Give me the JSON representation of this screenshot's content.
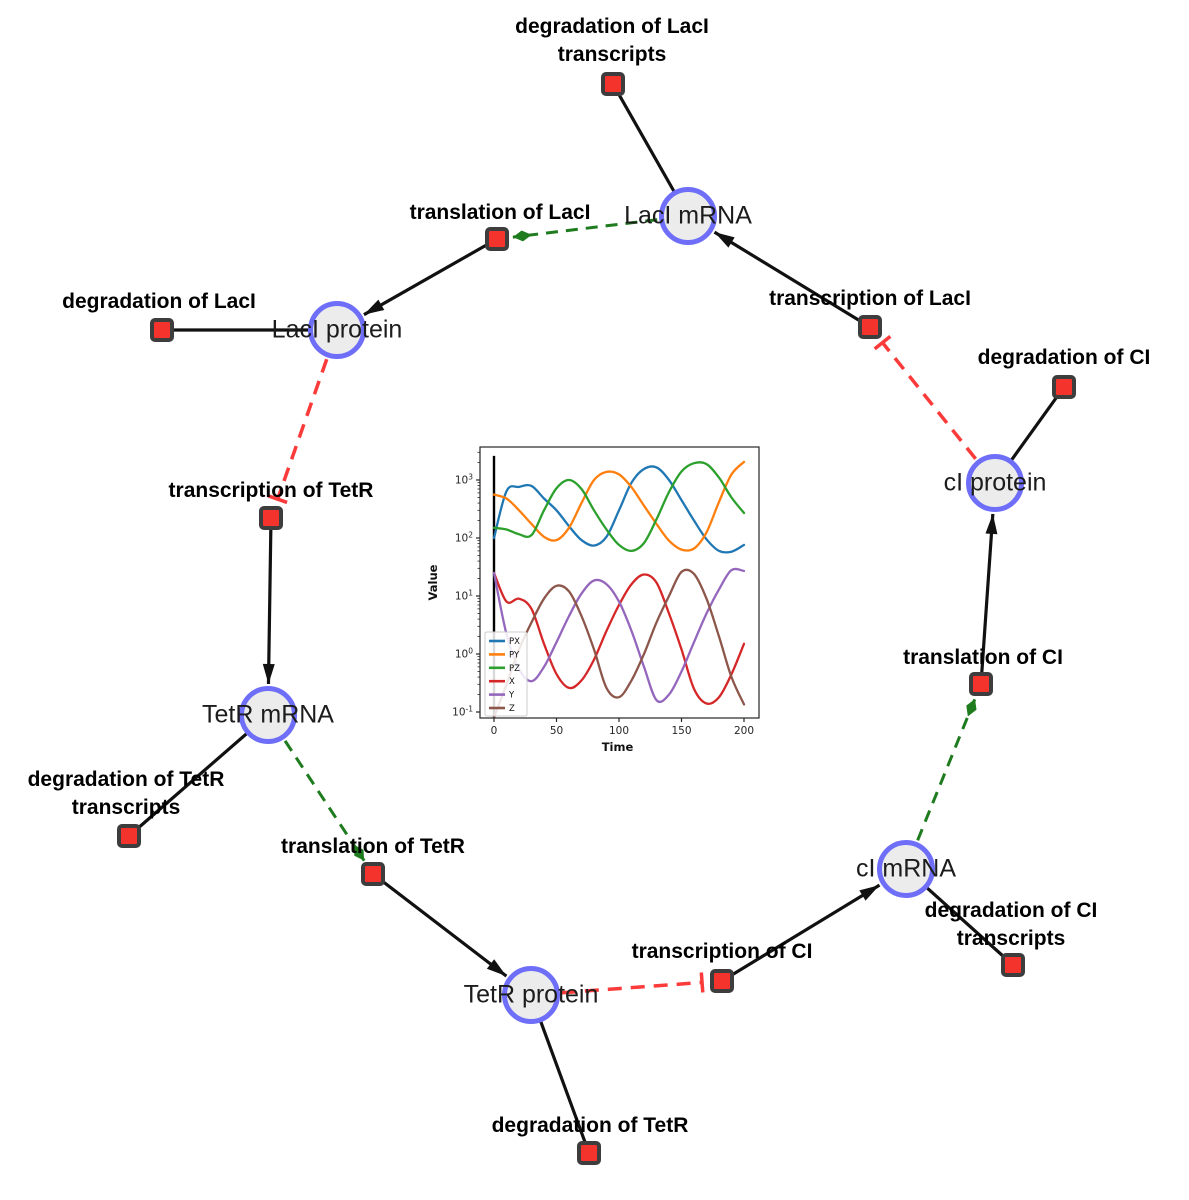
{
  "diagram": {
    "species": [
      {
        "id": "laci_mrna",
        "label": "LacI mRNA"
      },
      {
        "id": "laci_protein",
        "label": "LacI protein"
      },
      {
        "id": "ci_protein",
        "label": "cI protein"
      },
      {
        "id": "tetr_mrna",
        "label": "TetR mRNA"
      },
      {
        "id": "ci_mrna",
        "label": "cI mRNA"
      },
      {
        "id": "tetr_protein",
        "label": "TetR protein"
      }
    ],
    "reactions": [
      {
        "id": "deg_laci_tx",
        "label_lines": [
          "degradation of LacI",
          "transcripts"
        ]
      },
      {
        "id": "transl_laci",
        "label_lines": [
          "translation of LacI"
        ]
      },
      {
        "id": "deg_laci",
        "label_lines": [
          "degradation of LacI"
        ]
      },
      {
        "id": "txn_laci",
        "label_lines": [
          "transcription of LacI"
        ]
      },
      {
        "id": "deg_ci",
        "label_lines": [
          "degradation of CI"
        ]
      },
      {
        "id": "txn_tetr",
        "label_lines": [
          "transcription of TetR"
        ]
      },
      {
        "id": "transl_ci",
        "label_lines": [
          "translation of CI"
        ]
      },
      {
        "id": "deg_tetr_tx",
        "label_lines": [
          "degradation of TetR",
          "transcripts"
        ]
      },
      {
        "id": "transl_tetr",
        "label_lines": [
          "translation of TetR"
        ]
      },
      {
        "id": "txn_ci",
        "label_lines": [
          "transcription of CI"
        ]
      },
      {
        "id": "deg_ci_tx",
        "label_lines": [
          "degradation of CI",
          "transcripts"
        ]
      },
      {
        "id": "deg_tetr",
        "label_lines": [
          "degradation of TetR"
        ]
      }
    ],
    "edges": [
      {
        "from": "laci_mrna",
        "to": "deg_laci_tx",
        "type": "plain"
      },
      {
        "from": "laci_mrna",
        "to": "transl_laci",
        "type": "catalysis"
      },
      {
        "from": "transl_laci",
        "to": "laci_protein",
        "type": "arrow"
      },
      {
        "from": "laci_protein",
        "to": "deg_laci",
        "type": "plain"
      },
      {
        "from": "laci_protein",
        "to": "txn_tetr",
        "type": "inhibition"
      },
      {
        "from": "txn_tetr",
        "to": "tetr_mrna",
        "type": "arrow"
      },
      {
        "from": "tetr_mrna",
        "to": "deg_tetr_tx",
        "type": "plain"
      },
      {
        "from": "tetr_mrna",
        "to": "transl_tetr",
        "type": "catalysis"
      },
      {
        "from": "transl_tetr",
        "to": "tetr_protein",
        "type": "arrow"
      },
      {
        "from": "tetr_protein",
        "to": "deg_tetr",
        "type": "plain"
      },
      {
        "from": "tetr_protein",
        "to": "txn_ci",
        "type": "inhibition"
      },
      {
        "from": "txn_ci",
        "to": "ci_mrna",
        "type": "arrow"
      },
      {
        "from": "ci_mrna",
        "to": "deg_ci_tx",
        "type": "plain"
      },
      {
        "from": "ci_mrna",
        "to": "transl_ci",
        "type": "catalysis"
      },
      {
        "from": "transl_ci",
        "to": "ci_protein",
        "type": "arrow"
      },
      {
        "from": "ci_protein",
        "to": "deg_ci",
        "type": "plain"
      },
      {
        "from": "ci_protein",
        "to": "txn_laci",
        "type": "inhibition"
      },
      {
        "from": "txn_laci",
        "to": "laci_mrna",
        "type": "arrow"
      }
    ],
    "colors": {
      "species_fill": "#ececec",
      "species_border": "#6e6ef8",
      "reaction_fill": "#f4332d",
      "reaction_border": "#3d3d3d",
      "edge": "#111111",
      "catalysis": "#1e7b1e",
      "inhibition": "#fb3a3a"
    }
  },
  "chart_data": {
    "type": "line",
    "title": "",
    "xlabel": "Time",
    "ylabel": "Value",
    "yscale": "log",
    "xlim": [
      -11,
      212
    ],
    "ylim": [
      0.065,
      3700
    ],
    "xticks": [
      0,
      50,
      100,
      150,
      200
    ],
    "ytick_exponents": [
      -1,
      0,
      1,
      2,
      3
    ],
    "legend_position": "lower left",
    "grid": false,
    "vline": {
      "x": 0,
      "y_from": 0.07,
      "y_to": 2600,
      "color": "#000000"
    },
    "x": [
      0,
      10,
      20,
      30,
      40,
      50,
      60,
      70,
      80,
      90,
      100,
      110,
      120,
      130,
      140,
      150,
      160,
      170,
      180,
      190,
      200
    ],
    "series": [
      {
        "name": "PX",
        "color": "#1f77b4",
        "values": [
          100,
          640,
          760,
          790,
          480,
          300,
          160,
          92,
          74,
          105,
          300,
          900,
          1550,
          1650,
          1000,
          450,
          200,
          95,
          60,
          58,
          76
        ]
      },
      {
        "name": "PY",
        "color": "#ff7f0e",
        "values": [
          560,
          480,
          300,
          175,
          105,
          92,
          150,
          400,
          1000,
          1380,
          1250,
          750,
          360,
          175,
          90,
          63,
          66,
          125,
          420,
          1250,
          2050
        ]
      },
      {
        "name": "PZ",
        "color": "#2ca02c",
        "values": [
          150,
          140,
          116,
          112,
          300,
          720,
          1000,
          700,
          300,
          140,
          76,
          60,
          82,
          210,
          620,
          1400,
          1950,
          1880,
          1100,
          500,
          270
        ]
      },
      {
        "name": "X",
        "color": "#d62728",
        "values": [
          25,
          8,
          9,
          6,
          1.5,
          0.45,
          0.26,
          0.35,
          0.8,
          2.5,
          7,
          16,
          23.5,
          17,
          5,
          1.2,
          0.25,
          0.14,
          0.18,
          0.45,
          1.5
        ]
      },
      {
        "name": "Y",
        "color": "#9467bd",
        "values": [
          25,
          2.2,
          0.55,
          0.34,
          0.6,
          1.6,
          4.5,
          11,
          18.5,
          16,
          8,
          2.5,
          0.6,
          0.16,
          0.2,
          0.5,
          1.6,
          5,
          13,
          28,
          27
        ]
      },
      {
        "name": "Z",
        "color": "#8c564b",
        "values": [
          0.08,
          0.3,
          1.2,
          3.5,
          9,
          15,
          12,
          4.5,
          1.2,
          0.26,
          0.18,
          0.35,
          1.0,
          3.5,
          10,
          26,
          24,
          9,
          2,
          0.4,
          0.135
        ]
      }
    ]
  }
}
